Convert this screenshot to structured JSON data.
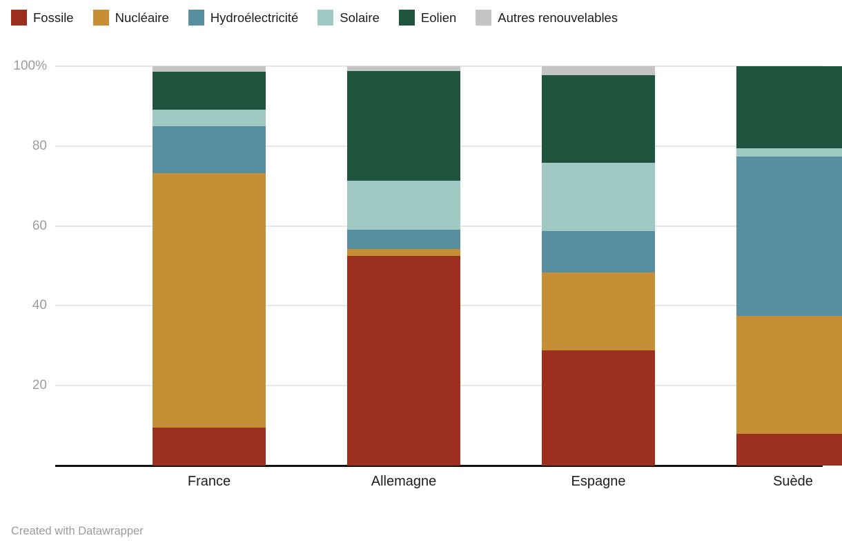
{
  "footer": {
    "credit": "Created with Datawrapper"
  },
  "chart_data": {
    "type": "bar",
    "variant": "stacked-100-percent-column",
    "title": "",
    "xlabel": "",
    "ylabel": "",
    "categories": [
      "France",
      "Allemagne",
      "Espagne",
      "Suède"
    ],
    "series": [
      {
        "name": "Fossile",
        "color": "#9c2f1e",
        "values": [
          9.5,
          52.5,
          28.8,
          7.9
        ]
      },
      {
        "name": "Nucléaire",
        "color": "#c68e35",
        "values": [
          63.8,
          1.7,
          19.5,
          29.6
        ]
      },
      {
        "name": "Hydroélectricité",
        "color": "#578fa0",
        "values": [
          11.7,
          4.8,
          10.5,
          39.8
        ]
      },
      {
        "name": "Solaire",
        "color": "#a1c9c3",
        "values": [
          4.2,
          12.4,
          17.0,
          2.2
        ]
      },
      {
        "name": "Eolien",
        "color": "#21543f",
        "values": [
          9.5,
          27.4,
          21.9,
          20.5
        ]
      },
      {
        "name": "Autres renouvelables",
        "color": "#c4c4c4",
        "values": [
          1.3,
          1.2,
          2.3,
          0
        ]
      }
    ],
    "stack_order_bottom_to_top": [
      "Fossile",
      "Nucléaire",
      "Hydroélectricité",
      "Solaire",
      "Eolien",
      "Autres renouvelables"
    ],
    "y_axis": {
      "range": [
        0,
        100
      ],
      "tick_values": [
        20,
        40,
        60,
        80,
        100
      ],
      "tick_labels": [
        "20",
        "40",
        "60",
        "80",
        "100%"
      ],
      "grid": true,
      "unit": "%"
    },
    "legend": {
      "position": "top-left"
    },
    "style_colors": {
      "axis_tick_label": "#9d9d9d",
      "category_label": "#1d1d1d",
      "legend_label": "#1d1d1d",
      "gridline": "#e7e7e7",
      "baseline": "#111111",
      "footer_text": "#9b9b9b",
      "background": "#ffffff"
    }
  }
}
